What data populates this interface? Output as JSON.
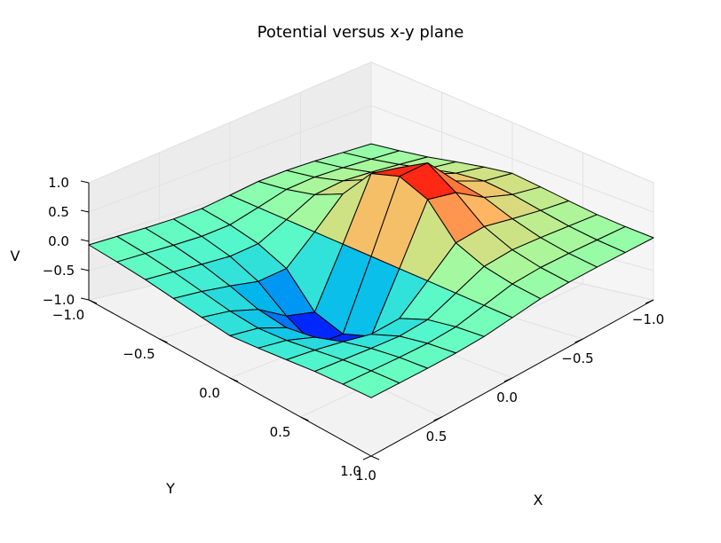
{
  "chart_data": {
    "type": "surface3d",
    "title": "Potential versus x-y plane",
    "xlabel": "X",
    "ylabel": "Y",
    "zlabel": "V",
    "xlim": [
      -1.0,
      1.0
    ],
    "ylim": [
      -1.0,
      1.0
    ],
    "zlim": [
      -1.0,
      1.0
    ],
    "x_ticks": [
      -1.0,
      -0.5,
      0.0,
      0.5,
      1.0
    ],
    "y_ticks": [
      -1.0,
      -0.5,
      0.0,
      0.5,
      1.0
    ],
    "z_ticks": [
      -1.0,
      -0.5,
      0.0,
      0.5,
      1.0
    ],
    "x_tick_labels": [
      "−1.0",
      "−0.5",
      "0.0",
      "0.5",
      "1.0"
    ],
    "y_tick_labels": [
      "−1.0",
      "−0.5",
      "0.0",
      "0.5",
      "1.0"
    ],
    "z_tick_labels": [
      "−1.0",
      "−0.5",
      "0.0",
      "0.5",
      "1.0"
    ],
    "colormap": "rainbow",
    "grid": true,
    "view": {
      "elevation_deg": 20,
      "azimuth_deg": 45
    },
    "surface": {
      "grid_x": [
        -1.0,
        -0.8,
        -0.6,
        -0.4,
        -0.2,
        0.0,
        0.2,
        0.4,
        0.6,
        0.8,
        1.0
      ],
      "grid_y": [
        -1.0,
        -0.8,
        -0.6,
        -0.4,
        -0.2,
        0.0,
        0.2,
        0.4,
        0.6,
        0.8,
        1.0
      ],
      "z": [
        [
          0.06,
          0.09,
          0.13,
          0.19,
          0.25,
          0.3,
          0.25,
          0.19,
          0.13,
          0.09,
          0.06
        ],
        [
          0.07,
          0.11,
          0.17,
          0.25,
          0.33,
          0.37,
          0.33,
          0.25,
          0.17,
          0.11,
          0.07
        ],
        [
          0.08,
          0.13,
          0.21,
          0.33,
          0.48,
          0.55,
          0.48,
          0.33,
          0.21,
          0.13,
          0.08
        ],
        [
          0.08,
          0.14,
          0.24,
          0.42,
          0.75,
          1.0,
          0.75,
          0.42,
          0.24,
          0.14,
          0.08
        ],
        [
          0.06,
          0.11,
          0.2,
          0.38,
          0.85,
          1.0,
          0.85,
          0.38,
          0.2,
          0.11,
          0.06
        ],
        [
          0.0,
          0.0,
          0.0,
          0.0,
          0.0,
          0.0,
          0.0,
          0.0,
          0.0,
          0.0,
          0.0
        ],
        [
          -0.06,
          -0.11,
          -0.2,
          -0.38,
          -0.85,
          -1.0,
          -0.85,
          -0.38,
          -0.2,
          -0.11,
          -0.06
        ],
        [
          -0.08,
          -0.14,
          -0.24,
          -0.42,
          -0.75,
          -1.0,
          -0.75,
          -0.42,
          -0.24,
          -0.14,
          -0.08
        ],
        [
          -0.08,
          -0.13,
          -0.21,
          -0.33,
          -0.48,
          -0.55,
          -0.48,
          -0.33,
          -0.21,
          -0.13,
          -0.08
        ],
        [
          -0.07,
          -0.11,
          -0.17,
          -0.25,
          -0.33,
          -0.37,
          -0.33,
          -0.25,
          -0.17,
          -0.11,
          -0.07
        ],
        [
          -0.06,
          -0.09,
          -0.13,
          -0.19,
          -0.25,
          -0.3,
          -0.25,
          -0.19,
          -0.13,
          -0.09,
          -0.06
        ]
      ]
    }
  }
}
